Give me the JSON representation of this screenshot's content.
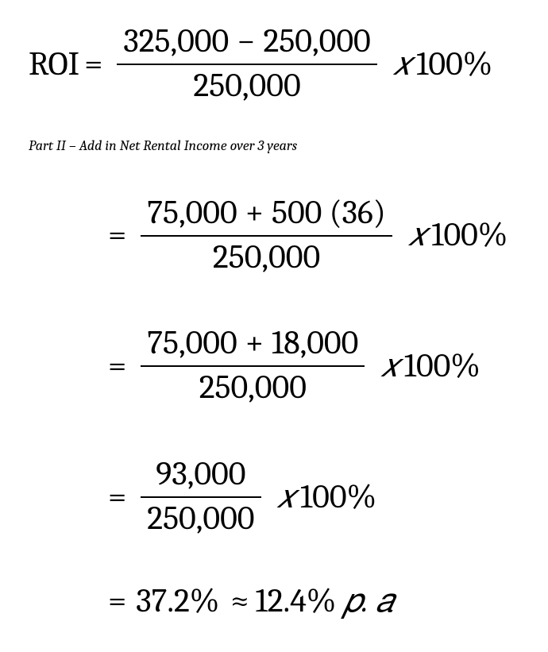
{
  "colors": {
    "text": "#000000",
    "background": "#ffffff",
    "rule": "#000000"
  },
  "typography": {
    "body_family": "Cambria / Times New Roman serif",
    "math_size_pt": 42,
    "caption_size_pt": 18,
    "caption_style": "italic"
  },
  "eq1": {
    "label": "ROI",
    "equals": "=",
    "numA": "325,000",
    "minus": "−",
    "numB": "250,000",
    "den": "250,000",
    "xvar": "𝑥",
    "pct": "100%"
  },
  "caption": "Part II – Add in Net Rental Income over 3 years",
  "eq2": {
    "equals": "=",
    "numA": "75,000",
    "plus": "+",
    "numB": "500 (36)",
    "den": "250,000",
    "xvar": "𝑥",
    "pct": "100%"
  },
  "eq3": {
    "equals": "=",
    "numA": "75,000",
    "plus": "+",
    "numB": "18,000",
    "den": "250,000",
    "xvar": "𝑥",
    "pct": "100%"
  },
  "eq4": {
    "equals": "=",
    "num": "93,000",
    "den": "250,000",
    "xvar": "𝑥",
    "pct": "100%"
  },
  "eq5": {
    "equals": "=",
    "total_pct": "37.2%",
    "approx": "≈",
    "annual_pct": "12.4%",
    "pa": "𝑝. 𝑎"
  }
}
